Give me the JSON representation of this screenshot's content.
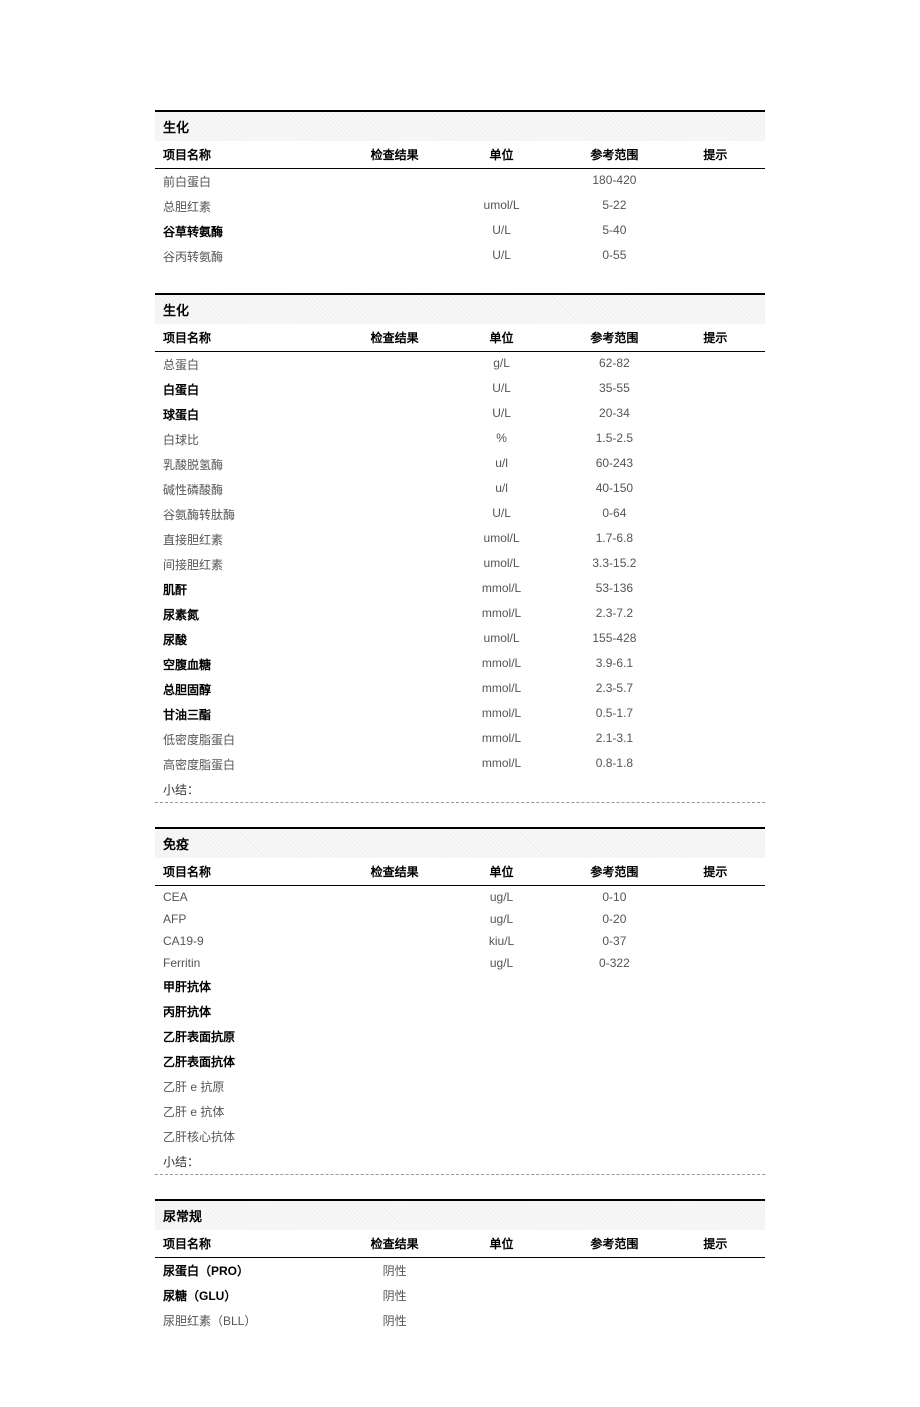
{
  "columns": {
    "name": "项目名称",
    "result": "检查结果",
    "unit": "单位",
    "range": "参考范围",
    "hint": "提示"
  },
  "summary_label": "小结：",
  "sections": [
    {
      "title": "生化",
      "has_summary": false,
      "rows": [
        {
          "name": "前白蛋白",
          "result": "",
          "unit": "",
          "range": "180-420",
          "hint": "",
          "bold": false
        },
        {
          "name": "总胆红素",
          "result": "",
          "unit": "umol/L",
          "range": "5-22",
          "hint": "",
          "bold": false
        },
        {
          "name": "谷草转氨酶",
          "result": "",
          "unit": "U/L",
          "range": "5-40",
          "hint": "",
          "bold": true
        },
        {
          "name": "谷丙转氨酶",
          "result": "",
          "unit": "U/L",
          "range": "0-55",
          "hint": "",
          "bold": false
        }
      ]
    },
    {
      "title": "生化",
      "has_summary": true,
      "rows": [
        {
          "name": "总蛋白",
          "result": "",
          "unit": "g/L",
          "range": "62-82",
          "hint": "",
          "bold": false
        },
        {
          "name": "白蛋白",
          "result": "",
          "unit": "U/L",
          "range": "35-55",
          "hint": "",
          "bold": true
        },
        {
          "name": "球蛋白",
          "result": "",
          "unit": "U/L",
          "range": "20-34",
          "hint": "",
          "bold": true
        },
        {
          "name": "白球比",
          "result": "",
          "unit": "%",
          "range": "1.5-2.5",
          "hint": "",
          "bold": false
        },
        {
          "name": "乳酸脱氢酶",
          "result": "",
          "unit": "u/l",
          "range": "60-243",
          "hint": "",
          "bold": false
        },
        {
          "name": "碱性磷酸酶",
          "result": "",
          "unit": "u/l",
          "range": "40-150",
          "hint": "",
          "bold": false
        },
        {
          "name": "谷氨酶转肽酶",
          "result": "",
          "unit": "U/L",
          "range": "0-64",
          "hint": "",
          "bold": false
        },
        {
          "name": "直接胆红素",
          "result": "",
          "unit": "umol/L",
          "range": "1.7-6.8",
          "hint": "",
          "bold": false
        },
        {
          "name": "间接胆红素",
          "result": "",
          "unit": "umol/L",
          "range": "3.3-15.2",
          "hint": "",
          "bold": false
        },
        {
          "name": "肌酐",
          "result": "",
          "unit": "mmol/L",
          "range": "53-136",
          "hint": "",
          "bold": true
        },
        {
          "name": "尿素氮",
          "result": "",
          "unit": "mmol/L",
          "range": "2.3-7.2",
          "hint": "",
          "bold": true
        },
        {
          "name": "尿酸",
          "result": "",
          "unit": "umol/L",
          "range": "155-428",
          "hint": "",
          "bold": true
        },
        {
          "name": "空腹血糖",
          "result": "",
          "unit": "mmol/L",
          "range": "3.9-6.1",
          "hint": "",
          "bold": true
        },
        {
          "name": "总胆固醇",
          "result": "",
          "unit": "mmol/L",
          "range": "2.3-5.7",
          "hint": "",
          "bold": true
        },
        {
          "name": "甘油三酯",
          "result": "",
          "unit": "mmol/L",
          "range": "0.5-1.7",
          "hint": "",
          "bold": true
        },
        {
          "name": "低密度脂蛋白",
          "result": "",
          "unit": "mmol/L",
          "range": "2.1-3.1",
          "hint": "",
          "bold": false
        },
        {
          "name": "高密度脂蛋白",
          "result": "",
          "unit": "mmol/L",
          "range": "0.8-1.8",
          "hint": "",
          "bold": false
        }
      ]
    },
    {
      "title": "免疫",
      "has_summary": true,
      "rows": [
        {
          "name": "CEA",
          "result": "",
          "unit": "ug/L",
          "range": "0-10",
          "hint": "",
          "bold": false
        },
        {
          "name": "AFP",
          "result": "",
          "unit": "ug/L",
          "range": "0-20",
          "hint": "",
          "bold": false
        },
        {
          "name": "CA19-9",
          "result": "",
          "unit": "kiu/L",
          "range": "0-37",
          "hint": "",
          "bold": false
        },
        {
          "name": "Ferritin",
          "result": "",
          "unit": "ug/L",
          "range": "0-322",
          "hint": "",
          "bold": false
        },
        {
          "name": "甲肝抗体",
          "result": "",
          "unit": "",
          "range": "",
          "hint": "",
          "bold": true
        },
        {
          "name": "丙肝抗体",
          "result": "",
          "unit": "",
          "range": "",
          "hint": "",
          "bold": true
        },
        {
          "name": "乙肝表面抗原",
          "result": "",
          "unit": "",
          "range": "",
          "hint": "",
          "bold": true
        },
        {
          "name": "乙肝表面抗体",
          "result": "",
          "unit": "",
          "range": "",
          "hint": "",
          "bold": true
        },
        {
          "name": "乙肝 e 抗原",
          "result": "",
          "unit": "",
          "range": "",
          "hint": "",
          "bold": false
        },
        {
          "name": "乙肝 e 抗体",
          "result": "",
          "unit": "",
          "range": "",
          "hint": "",
          "bold": false
        },
        {
          "name": "乙肝核心抗体",
          "result": "",
          "unit": "",
          "range": "",
          "hint": "",
          "bold": false
        }
      ]
    },
    {
      "title": "尿常规",
      "has_summary": false,
      "rows": [
        {
          "name": "尿蛋白（PRO）",
          "result": "阴性",
          "unit": "",
          "range": "",
          "hint": "",
          "bold": true
        },
        {
          "name": "尿糖（GLU）",
          "result": "阴性",
          "unit": "",
          "range": "",
          "hint": "",
          "bold": true
        },
        {
          "name": "尿胆红素（BLL）",
          "result": "阴性",
          "unit": "",
          "range": "",
          "hint": "",
          "bold": false
        }
      ]
    }
  ]
}
